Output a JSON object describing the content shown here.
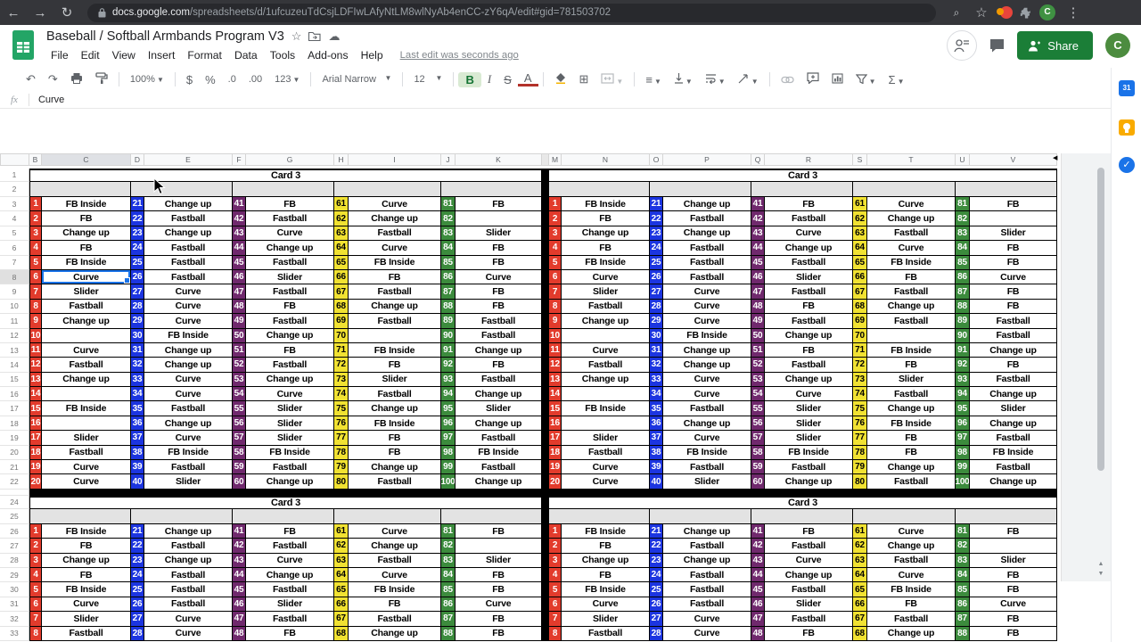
{
  "browser": {
    "url_host": "docs.google.com",
    "url_path": "/spreadsheets/d/1ufcuzeuTdCsjLDFIwLAfyNtLM8wlNyAb4enCC-zY6qA/edit#gid=781503702",
    "avatar_initial": "C"
  },
  "header": {
    "title": "Baseball / Softball Armbands Program V3",
    "menus": [
      "File",
      "Edit",
      "View",
      "Insert",
      "Format",
      "Data",
      "Tools",
      "Add-ons",
      "Help"
    ],
    "last_edit_label": "Last edit was seconds ago",
    "share_label": "Share",
    "avatar_initial": "C"
  },
  "toolbar": {
    "zoom_level": "100%",
    "currency": "$",
    "percent": "%",
    "decrease_decimal": ".0",
    "increase_decimal": ".00",
    "more_formats": "123",
    "font_name": "Arial Narrow",
    "font_size": "12",
    "bold": "B",
    "italic": "I",
    "strikethrough": "S",
    "text_color": "A",
    "functions": "Σ"
  },
  "formula_bar": {
    "fx_label": "fx",
    "value": "Curve"
  },
  "sheet": {
    "columns_left": [
      "B",
      "C",
      "D",
      "E",
      "F",
      "G",
      "H",
      "I",
      "J",
      "K"
    ],
    "columns_right": [
      "M",
      "N",
      "O",
      "P",
      "Q",
      "R",
      "S",
      "T",
      "U",
      "V"
    ],
    "selected_column": "C",
    "selected_row": 8,
    "total_rows_visible": 33
  },
  "card": {
    "title": "Card 3",
    "number_colors": {
      "red": "#e23b2c",
      "blue": "#1c35e0",
      "purple": "#70296d",
      "yellow": "#f1e232",
      "green": "#3c8b3d"
    },
    "color_order": [
      "red",
      "blue",
      "purple",
      "yellow",
      "green"
    ],
    "rows": [
      [
        "1",
        "FB Inside",
        "21",
        "Change up",
        "41",
        "FB",
        "61",
        "Curve",
        "81",
        "FB"
      ],
      [
        "2",
        "FB",
        "22",
        "Fastball",
        "42",
        "Fastball",
        "62",
        "Change up",
        "82",
        ""
      ],
      [
        "3",
        "Change up",
        "23",
        "Change up",
        "43",
        "Curve",
        "63",
        "Fastball",
        "83",
        "Slider"
      ],
      [
        "4",
        "FB",
        "24",
        "Fastball",
        "44",
        "Change up",
        "64",
        "Curve",
        "84",
        "FB"
      ],
      [
        "5",
        "FB Inside",
        "25",
        "Fastball",
        "45",
        "Fastball",
        "65",
        "FB Inside",
        "85",
        "FB"
      ],
      [
        "6",
        "Curve",
        "26",
        "Fastball",
        "46",
        "Slider",
        "66",
        "FB",
        "86",
        "Curve"
      ],
      [
        "7",
        "Slider",
        "27",
        "Curve",
        "47",
        "Fastball",
        "67",
        "Fastball",
        "87",
        "FB"
      ],
      [
        "8",
        "Fastball",
        "28",
        "Curve",
        "48",
        "FB",
        "68",
        "Change up",
        "88",
        "FB"
      ],
      [
        "9",
        "Change up",
        "29",
        "Curve",
        "49",
        "Fastball",
        "69",
        "Fastball",
        "89",
        "Fastball"
      ],
      [
        "10",
        "",
        "30",
        "FB Inside",
        "50",
        "Change up",
        "70",
        "",
        "90",
        "Fastball"
      ],
      [
        "11",
        "Curve",
        "31",
        "Change up",
        "51",
        "FB",
        "71",
        "FB Inside",
        "91",
        "Change up"
      ],
      [
        "12",
        "Fastball",
        "32",
        "Change up",
        "52",
        "Fastball",
        "72",
        "FB",
        "92",
        "FB"
      ],
      [
        "13",
        "Change up",
        "33",
        "Curve",
        "53",
        "Change up",
        "73",
        "Slider",
        "93",
        "Fastball"
      ],
      [
        "14",
        "",
        "34",
        "Curve",
        "54",
        "Curve",
        "74",
        "Fastball",
        "94",
        "Change up"
      ],
      [
        "15",
        "FB Inside",
        "35",
        "Fastball",
        "55",
        "Slider",
        "75",
        "Change up",
        "95",
        "Slider"
      ],
      [
        "16",
        "",
        "36",
        "Change up",
        "56",
        "Slider",
        "76",
        "FB Inside",
        "96",
        "Change up"
      ],
      [
        "17",
        "Slider",
        "37",
        "Curve",
        "57",
        "Slider",
        "77",
        "FB",
        "97",
        "Fastball"
      ],
      [
        "18",
        "Fastball",
        "38",
        "FB Inside",
        "58",
        "FB Inside",
        "78",
        "FB",
        "98",
        "FB Inside"
      ],
      [
        "19",
        "Curve",
        "39",
        "Fastball",
        "59",
        "Fastball",
        "79",
        "Change up",
        "99",
        "Fastball"
      ],
      [
        "20",
        "Curve",
        "40",
        "Slider",
        "60",
        "Change up",
        "80",
        "Fastball",
        "100",
        "Change up"
      ]
    ],
    "bottom_section_rows_visible": 8
  },
  "side_panel": {
    "calendar_label": "31",
    "tasks_check": "✓"
  }
}
